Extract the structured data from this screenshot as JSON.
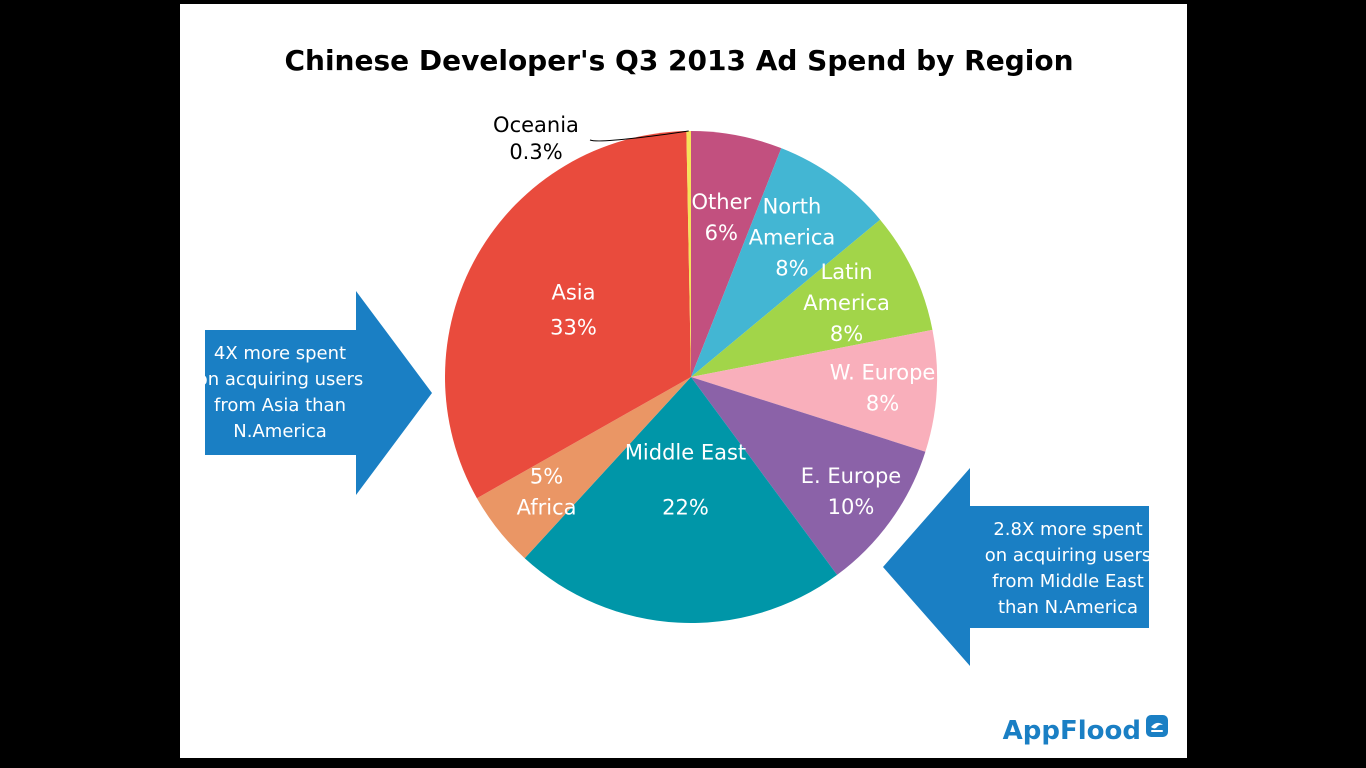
{
  "chart_data": {
    "type": "pie",
    "title": "Chinese Developer's Q3 2013 Ad Spend by Region",
    "slices": [
      {
        "name": "Other",
        "value": 6,
        "label_lines": [
          "Other",
          "6%"
        ],
        "color": "#c2507f",
        "label_color": "#ffffff"
      },
      {
        "name": "North America",
        "value": 8,
        "label_lines": [
          "North",
          "America",
          "8%"
        ],
        "color": "#43b6d3",
        "label_color": "#ffffff"
      },
      {
        "name": "Latin America",
        "value": 8,
        "label_lines": [
          "Latin",
          "America",
          "8%"
        ],
        "color": "#a2d549",
        "label_color": "#ffffff"
      },
      {
        "name": "W. Europe",
        "value": 8,
        "label_lines": [
          "W. Europe",
          "8%"
        ],
        "color": "#f9afbb",
        "label_color": "#ffffff"
      },
      {
        "name": "E. Europe",
        "value": 10,
        "label_lines": [
          "E. Europe",
          "10%"
        ],
        "color": "#8b62a8",
        "label_color": "#ffffff"
      },
      {
        "name": "Middle East",
        "value": 22,
        "label_lines": [
          "Middle East",
          "22%"
        ],
        "color": "#0096a8",
        "label_color": "#ffffff"
      },
      {
        "name": "Africa",
        "value": 5,
        "label_lines": [
          "5%",
          "Africa"
        ],
        "color": "#ea9665",
        "label_color": "#ffffff"
      },
      {
        "name": "Asia",
        "value": 33,
        "label_lines": [
          "Asia",
          "33%"
        ],
        "color": "#e94b3d",
        "label_color": "#ffffff"
      },
      {
        "name": "Oceania",
        "value": 0.3,
        "label_lines": [
          "Oceania",
          "0.3%"
        ],
        "color": "#f5e35a",
        "label_color": "#000000"
      }
    ],
    "start_angle_deg": 0,
    "legend": "none",
    "callouts": [
      {
        "name": "asia-callout",
        "lines": [
          "4X more spent",
          "on acquiring users",
          "from Asia than",
          "N.America"
        ],
        "direction": "right",
        "color": "#1a7fc4"
      },
      {
        "name": "middle-east-callout",
        "lines": [
          "2.8X more spent",
          "on acquiring users",
          "from Middle East",
          "than N.America"
        ],
        "direction": "left",
        "color": "#1a7fc4"
      }
    ]
  },
  "brand": {
    "name": "AppFlood",
    "color": "#1a7fc4",
    "icon": "appflood-logo-icon"
  }
}
